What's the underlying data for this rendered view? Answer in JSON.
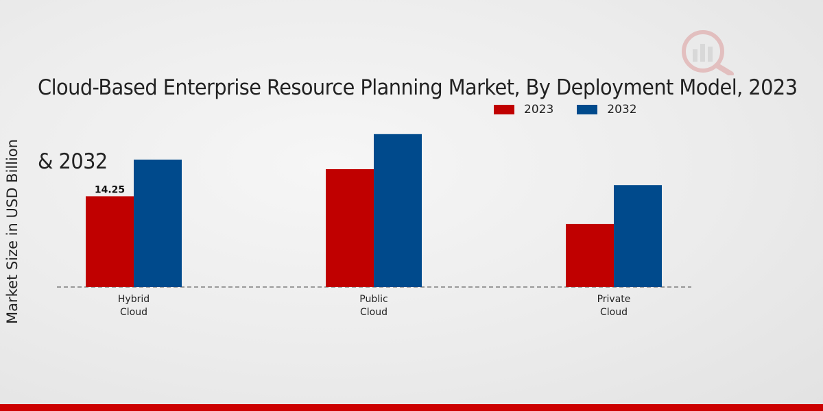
{
  "chart_data": {
    "type": "bar",
    "title_lines": [
      "Cloud-Based Enterprise Resource Planning Market, By Deployment Model, 2023",
      "& 2032"
    ],
    "ylabel": "Market Size in USD Billion",
    "categories": [
      [
        "Hybrid",
        "Cloud"
      ],
      [
        "Public",
        "Cloud"
      ],
      [
        "Private",
        "Cloud"
      ]
    ],
    "series": [
      {
        "name": "2023",
        "color": "#c00000",
        "values": [
          14.25,
          18.5,
          9.9
        ]
      },
      {
        "name": "2032",
        "color": "#004a8c",
        "values": [
          20.0,
          24.0,
          16.0
        ]
      }
    ],
    "data_labels": [
      {
        "series": 0,
        "category": 0,
        "text": "14.25"
      }
    ],
    "ylim": [
      0,
      30
    ],
    "grid": false,
    "legend_position": "top-right"
  }
}
